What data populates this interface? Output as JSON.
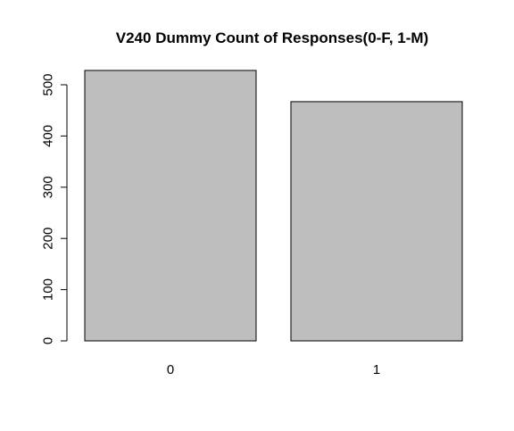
{
  "chart_data": {
    "type": "bar",
    "title": "V240 Dummy Count of Responses(0-F, 1-M)",
    "xlabel": "",
    "ylabel": "",
    "categories": [
      "0",
      "1"
    ],
    "values": [
      528,
      467
    ],
    "ylim": [
      0,
      540
    ],
    "yticks": [
      0,
      100,
      200,
      300,
      400,
      500
    ],
    "ytick_labels": [
      "0",
      "100",
      "200",
      "300",
      "400",
      "500"
    ],
    "grid": false,
    "legend": "none",
    "bar_color": "#bebebe",
    "border_color": "#000000"
  }
}
